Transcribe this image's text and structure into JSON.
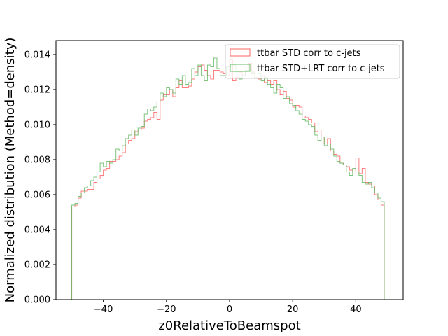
{
  "chart_data": {
    "type": "histogram",
    "xlabel": "z0RelativeToBeamspot",
    "ylabel": "Normalized distribution (Method=density)",
    "xlim": [
      -55,
      55
    ],
    "ylim": [
      0,
      0.0148
    ],
    "x_ticks": [
      -40,
      -20,
      0,
      20,
      40
    ],
    "y_ticks": [
      0.0,
      0.002,
      0.004,
      0.006,
      0.008,
      0.01,
      0.012,
      0.014
    ],
    "x_tick_labels": [
      "−40",
      "−20",
      "0",
      "20",
      "40"
    ],
    "y_tick_labels": [
      "0.000",
      "0.002",
      "0.004",
      "0.006",
      "0.008",
      "0.010",
      "0.012",
      "0.014"
    ],
    "grid": false,
    "legend_position": "upper right",
    "bin_edges": [
      -50,
      -49,
      -48,
      -47,
      -46,
      -45,
      -44,
      -43,
      -42,
      -41,
      -40,
      -39,
      -38,
      -37,
      -36,
      -35,
      -34,
      -33,
      -32,
      -31,
      -30,
      -29,
      -28,
      -27,
      -26,
      -25,
      -24,
      -23,
      -22,
      -21,
      -20,
      -19,
      -18,
      -17,
      -16,
      -15,
      -14,
      -13,
      -12,
      -11,
      -10,
      -9,
      -8,
      -7,
      -6,
      -5,
      -4,
      -3,
      -2,
      -1,
      0,
      1,
      2,
      3,
      4,
      5,
      6,
      7,
      8,
      9,
      10,
      11,
      12,
      13,
      14,
      15,
      16,
      17,
      18,
      19,
      20,
      21,
      22,
      23,
      24,
      25,
      26,
      27,
      28,
      29,
      30,
      31,
      32,
      33,
      34,
      35,
      36,
      37,
      38,
      39,
      40,
      41,
      42,
      43,
      44,
      45,
      46,
      47,
      48,
      49
    ],
    "series": [
      {
        "name": "ttbar STD corr to c-jets",
        "color": "#ff6666",
        "values": [
          0.0053,
          0.0054,
          0.0058,
          0.0062,
          0.0062,
          0.0063,
          0.0063,
          0.0067,
          0.0069,
          0.0071,
          0.0074,
          0.0075,
          0.0079,
          0.0079,
          0.008,
          0.0082,
          0.0084,
          0.0089,
          0.0091,
          0.0092,
          0.0096,
          0.0097,
          0.0098,
          0.0102,
          0.0103,
          0.0104,
          0.0107,
          0.0103,
          0.0114,
          0.0117,
          0.0117,
          0.012,
          0.0116,
          0.0121,
          0.0125,
          0.0121,
          0.0121,
          0.0122,
          0.0126,
          0.013,
          0.0133,
          0.0134,
          0.0131,
          0.0128,
          0.0126,
          0.0131,
          0.0131,
          0.013,
          0.0129,
          0.0128,
          0.0137,
          0.0125,
          0.0127,
          0.013,
          0.0128,
          0.0131,
          0.0135,
          0.013,
          0.0127,
          0.0126,
          0.0128,
          0.0124,
          0.0125,
          0.0123,
          0.0125,
          0.012,
          0.0117,
          0.0119,
          0.0115,
          0.0114,
          0.011,
          0.0111,
          0.011,
          0.0105,
          0.0104,
          0.0103,
          0.0101,
          0.0096,
          0.0097,
          0.0093,
          0.0089,
          0.0092,
          0.0085,
          0.0083,
          0.0082,
          0.0078,
          0.0077,
          0.0076,
          0.0074,
          0.0073,
          0.0081,
          0.0072,
          0.0075,
          0.0067,
          0.0066,
          0.0065,
          0.006,
          0.0057,
          0.0054
        ]
      },
      {
        "name": "ttbar STD+LRT corr to c-jets",
        "color": "#66bb66",
        "values": [
          0.0054,
          0.0055,
          0.0059,
          0.0061,
          0.0064,
          0.0065,
          0.0068,
          0.007,
          0.0073,
          0.0078,
          0.0076,
          0.0079,
          0.0078,
          0.008,
          0.0086,
          0.0085,
          0.0088,
          0.0092,
          0.0094,
          0.0097,
          0.0094,
          0.0098,
          0.0099,
          0.0106,
          0.0109,
          0.0108,
          0.011,
          0.0113,
          0.0118,
          0.0116,
          0.0121,
          0.012,
          0.0118,
          0.0126,
          0.0123,
          0.0128,
          0.0123,
          0.0124,
          0.0132,
          0.0128,
          0.0134,
          0.0128,
          0.0125,
          0.0134,
          0.0133,
          0.0138,
          0.0132,
          0.0128,
          0.0128,
          0.0133,
          0.0133,
          0.0134,
          0.013,
          0.0126,
          0.0128,
          0.0131,
          0.0131,
          0.0129,
          0.0127,
          0.0129,
          0.0125,
          0.0127,
          0.0123,
          0.0121,
          0.0118,
          0.0123,
          0.0121,
          0.0115,
          0.0116,
          0.0112,
          0.0111,
          0.0108,
          0.0106,
          0.0103,
          0.0102,
          0.01,
          0.0099,
          0.0094,
          0.0091,
          0.0093,
          0.0088,
          0.0089,
          0.0086,
          0.0082,
          0.0079,
          0.0078,
          0.0077,
          0.0073,
          0.0071,
          0.0075,
          0.0073,
          0.0071,
          0.0067,
          0.0066,
          0.0067,
          0.0064,
          0.0061,
          0.0058,
          0.0056
        ]
      }
    ]
  }
}
